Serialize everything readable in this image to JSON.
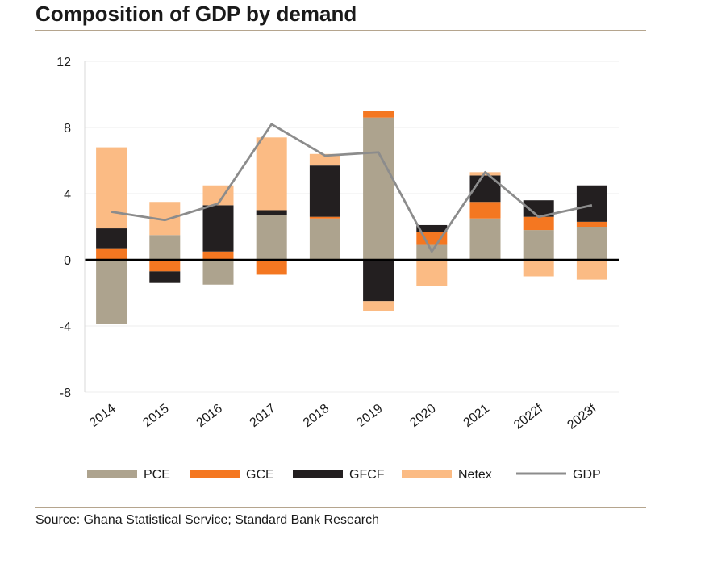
{
  "title": "Composition of GDP by demand",
  "source": "Source: Ghana Statistical Service; Standard Bank Research",
  "chart_data": {
    "type": "bar",
    "stacked": true,
    "categories": [
      "2014",
      "2015",
      "2016",
      "2017",
      "2018",
      "2019",
      "2020",
      "2021",
      "2022f",
      "2023f"
    ],
    "ylim": [
      -8,
      12
    ],
    "yticks": [
      -8,
      -4,
      0,
      4,
      8,
      12
    ],
    "ytick_labels": [
      "-8",
      "-4",
      "0",
      "4",
      "8",
      "12"
    ],
    "grid": true,
    "legend_position": "bottom",
    "series": [
      {
        "name": "PCE",
        "color": "#ada38e",
        "values": [
          -3.9,
          1.5,
          -1.5,
          2.7,
          2.5,
          8.6,
          0.9,
          2.5,
          1.8,
          2.0
        ]
      },
      {
        "name": "GCE",
        "color": "#f47721",
        "values": [
          0.7,
          -0.7,
          0.5,
          -0.9,
          0.1,
          0.4,
          0.8,
          1.0,
          0.8,
          0.3
        ]
      },
      {
        "name": "GFCF",
        "color": "#231f20",
        "values": [
          1.2,
          -0.7,
          2.8,
          0.3,
          3.1,
          -2.5,
          0.4,
          1.6,
          1.0,
          2.2
        ]
      },
      {
        "name": "Netex",
        "color": "#fbbb84",
        "values": [
          4.9,
          2.0,
          1.2,
          4.4,
          0.7,
          -0.6,
          -1.6,
          0.2,
          -1.0,
          -1.2
        ]
      }
    ],
    "line_series": {
      "name": "GDP",
      "color": "#8c8c8c",
      "values": [
        2.9,
        2.4,
        3.4,
        8.2,
        6.3,
        6.5,
        0.5,
        5.3,
        2.6,
        3.3
      ]
    }
  }
}
